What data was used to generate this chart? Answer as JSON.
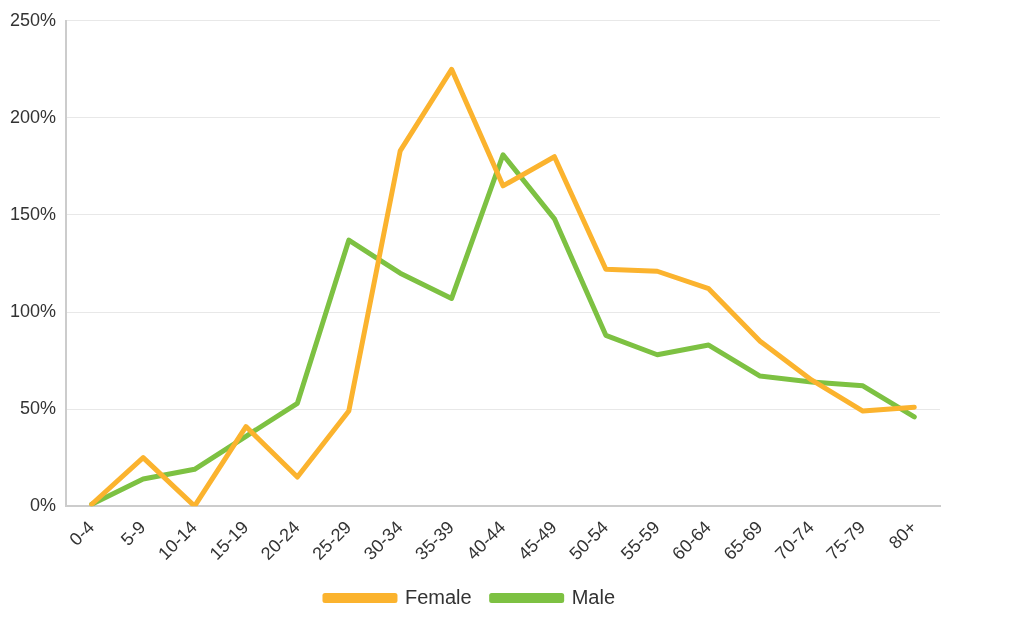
{
  "chart_data": {
    "type": "line",
    "categories": [
      "0-4",
      "5-9",
      "10-14",
      "15-19",
      "20-24",
      "25-29",
      "30-34",
      "35-39",
      "40-44",
      "45-49",
      "50-54",
      "55-59",
      "60-64",
      "65-69",
      "70-74",
      "75-79",
      "80+"
    ],
    "series": [
      {
        "name": "Female",
        "color": "#fbb32e",
        "values": [
          1,
          25,
          0,
          41,
          15,
          49,
          183,
          225,
          165,
          180,
          122,
          121,
          112,
          85,
          65,
          49,
          51
        ]
      },
      {
        "name": "Male",
        "color": "#7dc142",
        "values": [
          1,
          14,
          19,
          36,
          53,
          137,
          120,
          107,
          181,
          148,
          88,
          78,
          83,
          67,
          64,
          62,
          46
        ]
      }
    ],
    "ylim": [
      0,
      250
    ],
    "yticks": [
      {
        "value": 0,
        "label": "0%"
      },
      {
        "value": 50,
        "label": "50%"
      },
      {
        "value": 100,
        "label": "100%"
      },
      {
        "value": 150,
        "label": "150%"
      },
      {
        "value": 200,
        "label": "200%"
      },
      {
        "value": 250,
        "label": "250%"
      }
    ],
    "grid": "y",
    "legend": "bottom",
    "marker": "none",
    "line_style": "solid"
  }
}
